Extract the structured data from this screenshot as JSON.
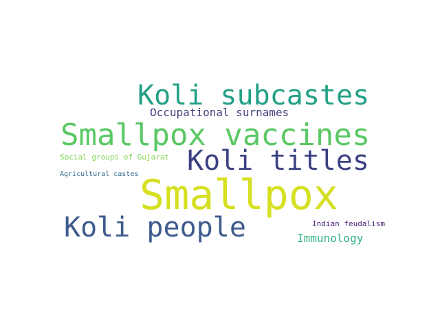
{
  "words": {
    "koli_subcastes": {
      "text": "Koli subcastes",
      "color": "#22a085"
    },
    "occupational_surnames": {
      "text": "Occupational surnames",
      "color": "#463f7c"
    },
    "smallpox_vaccines": {
      "text": "Smallpox vaccines",
      "color": "#5ac864"
    },
    "koli_titles": {
      "text": "Koli titles",
      "color": "#3b4182"
    },
    "social_groups_of_gujarat": {
      "text": "Social groups of Gujarat",
      "color": "#7ed34f"
    },
    "agricultural_castes": {
      "text": "Agricultural castes",
      "color": "#31688e"
    },
    "smallpox": {
      "text": "Smallpox",
      "color": "#d6e022"
    },
    "koli_people": {
      "text": "Koli people",
      "color": "#3e5b8d"
    },
    "indian_feudalism": {
      "text": "Indian feudalism",
      "color": "#482475"
    },
    "immunology": {
      "text": "Immunology",
      "color": "#2fb47c"
    }
  }
}
